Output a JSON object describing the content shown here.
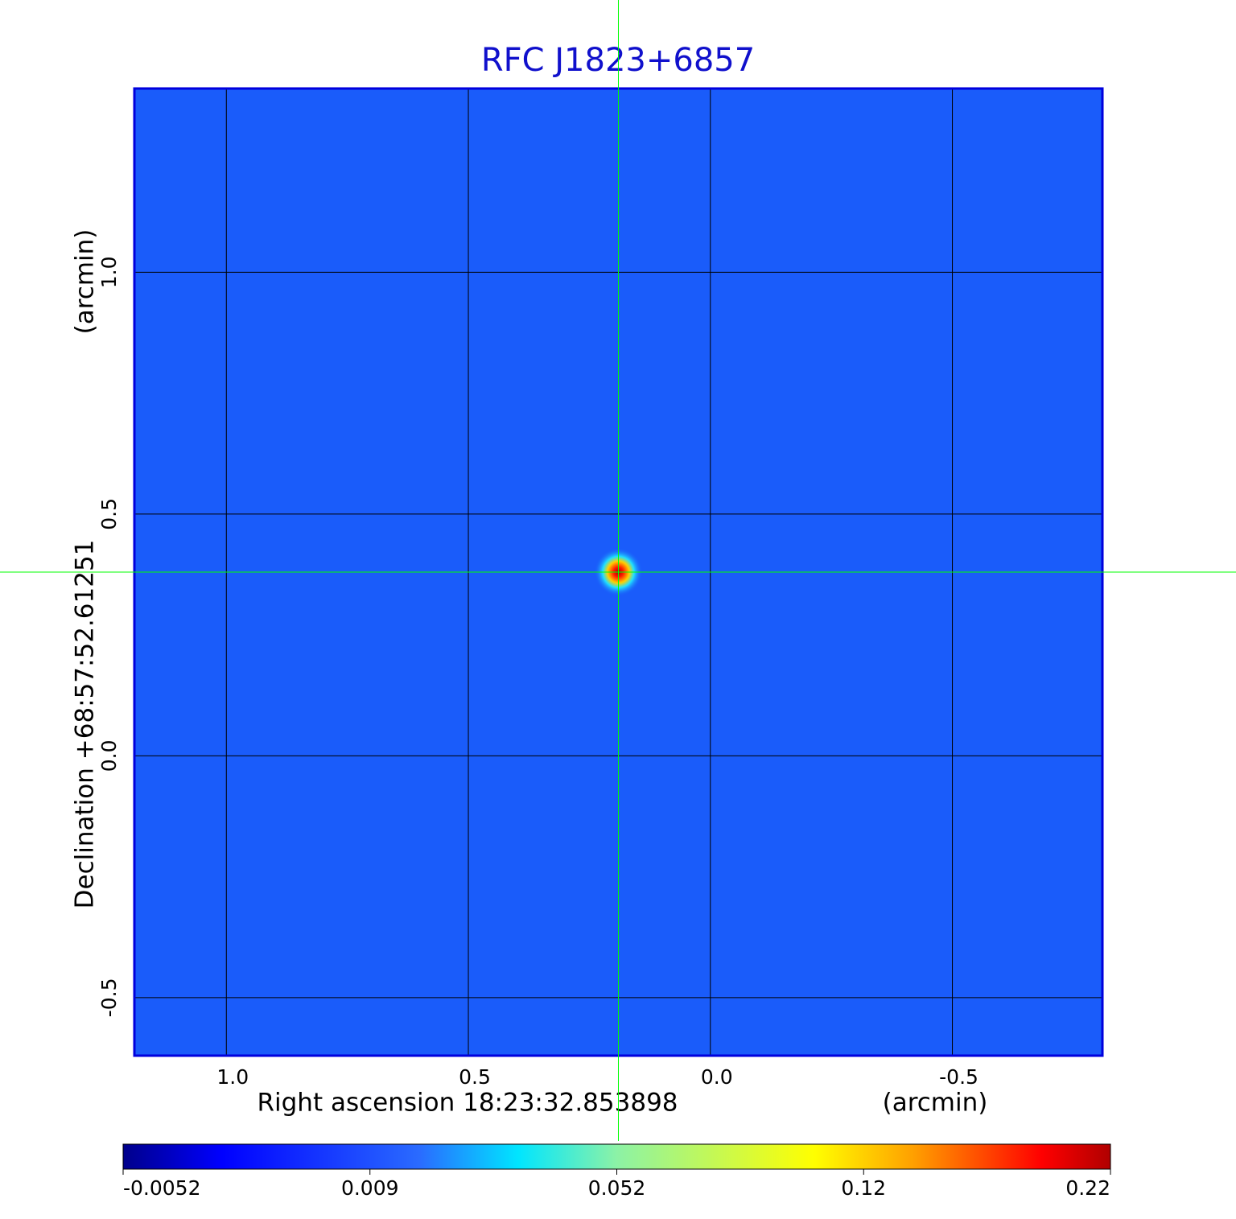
{
  "chart_data": {
    "type": "image",
    "title": "RFC J1823+6857",
    "xlabel": "Right ascension  18:23:32.853898",
    "xunit": "(arcmin)",
    "ylabel": "Declination  +68:57:52.61251",
    "yunit": "(arcmin)",
    "xlim": [
      1.19,
      -0.81
    ],
    "ylim": [
      -0.62,
      1.38
    ],
    "xticks": [
      {
        "value": 1,
        "label": "1.0"
      },
      0.5,
      {
        "value": 0,
        "label": "0.0"
      },
      -0.5
    ],
    "yticks": [
      -0.5,
      {
        "value": 0,
        "label": "0.0"
      },
      0.5,
      {
        "value": 1,
        "label": "1.0"
      }
    ],
    "grid": true,
    "background_color": "#1a5cfa",
    "source": {
      "x": 0.19,
      "y": 0.38,
      "peak": 0.22
    },
    "crosshair": {
      "x": 0.19,
      "y": 0.38,
      "color": "#00ff00"
    },
    "colorbar": {
      "lim": [
        -0.0052,
        0.22
      ],
      "ticks": [
        -0.0052,
        0.009,
        0.052,
        0.12,
        0.22
      ]
    }
  }
}
